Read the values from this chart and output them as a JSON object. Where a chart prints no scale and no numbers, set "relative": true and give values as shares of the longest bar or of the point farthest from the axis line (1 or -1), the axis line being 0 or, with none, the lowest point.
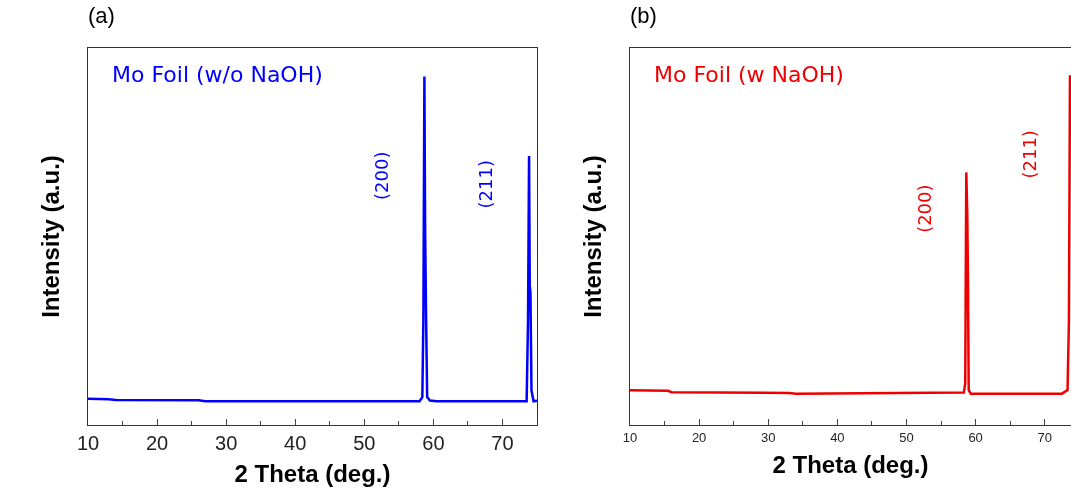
{
  "chart_data": [
    {
      "type": "line",
      "title": "(a)",
      "xlabel": "2 Theta (deg.)",
      "ylabel": "Intensity (a.u.)",
      "relative": true,
      "tick_labels": "x",
      "xlim": [
        10,
        75
      ],
      "xticks": [
        10,
        20,
        30,
        40,
        50,
        60,
        70
      ],
      "series": [
        {
          "name": "Mo Foil (w/o NaOH)",
          "color": "#0000ff",
          "x": [
            10,
            13,
            14,
            26,
            27,
            58,
            58.4,
            58.55,
            58.7,
            58.8,
            58.85,
            58.95,
            59.1,
            59.5,
            60.5,
            73.5,
            73.7,
            73.85,
            73.95,
            74.05,
            74.2,
            74.5,
            75
          ],
          "values": [
            0.075,
            0.074,
            0.072,
            0.071,
            0.068,
            0.068,
            0.08,
            0.3,
            1.0,
            0.58,
            0.475,
            0.3,
            0.08,
            0.07,
            0.068,
            0.068,
            0.3,
            0.772,
            0.4,
            0.38,
            0.1,
            0.068,
            0.07
          ]
        }
      ],
      "annotations": [
        "(200)",
        "(211)"
      ]
    },
    {
      "type": "line",
      "title": "(b)",
      "xlabel": "2 Theta (deg.)",
      "ylabel": "Intensity (a.u.)",
      "relative": true,
      "tick_labels": "x",
      "xlim": [
        10,
        73.8
      ],
      "xticks": [
        10,
        20,
        30,
        40,
        50,
        60,
        70
      ],
      "series": [
        {
          "name": "Mo Foil (w NaOH)",
          "color": "#ee0000",
          "x": [
            10,
            15.5,
            16,
            33,
            34,
            58.3,
            58.5,
            58.65,
            58.8,
            58.9,
            59.0,
            59.3,
            72.5,
            73.3,
            73.5,
            73.65,
            73.8
          ],
          "values": [
            0.1,
            0.098,
            0.094,
            0.092,
            0.09,
            0.093,
            0.12,
            0.725,
            0.6,
            0.4,
            0.1,
            0.09,
            0.09,
            0.1,
            0.3,
            1.0,
            1.0
          ]
        }
      ],
      "annotations": [
        "(200)",
        "(211)"
      ]
    }
  ]
}
